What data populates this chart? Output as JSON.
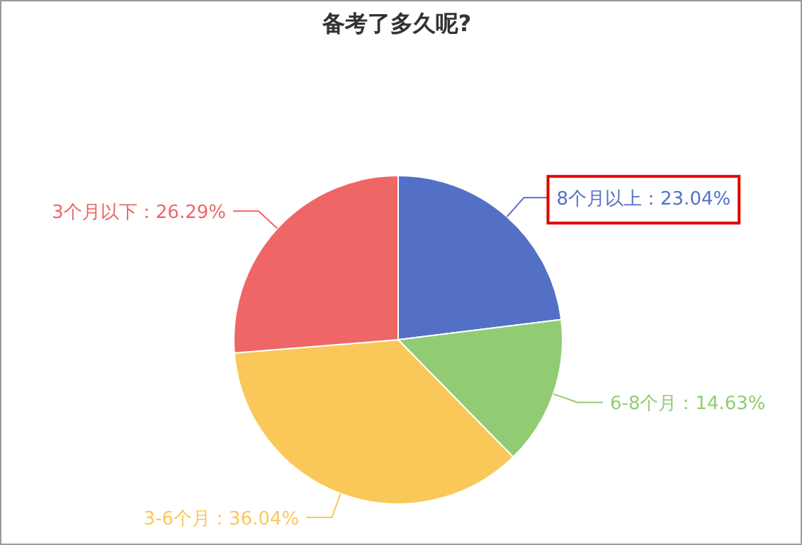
{
  "chart_data": {
    "type": "pie",
    "title": "备考了多久呢?",
    "categories": [
      "8个月以上",
      "6-8个月",
      "3-6个月",
      "3个月以下"
    ],
    "values": [
      23.04,
      14.63,
      36.04,
      26.29
    ],
    "value_labels": [
      "：23.04%",
      "：14.63%",
      "：36.04%",
      "：26.29%"
    ],
    "colors": [
      "#5470c6",
      "#91cc75",
      "#fac858",
      "#ee6666"
    ]
  }
}
